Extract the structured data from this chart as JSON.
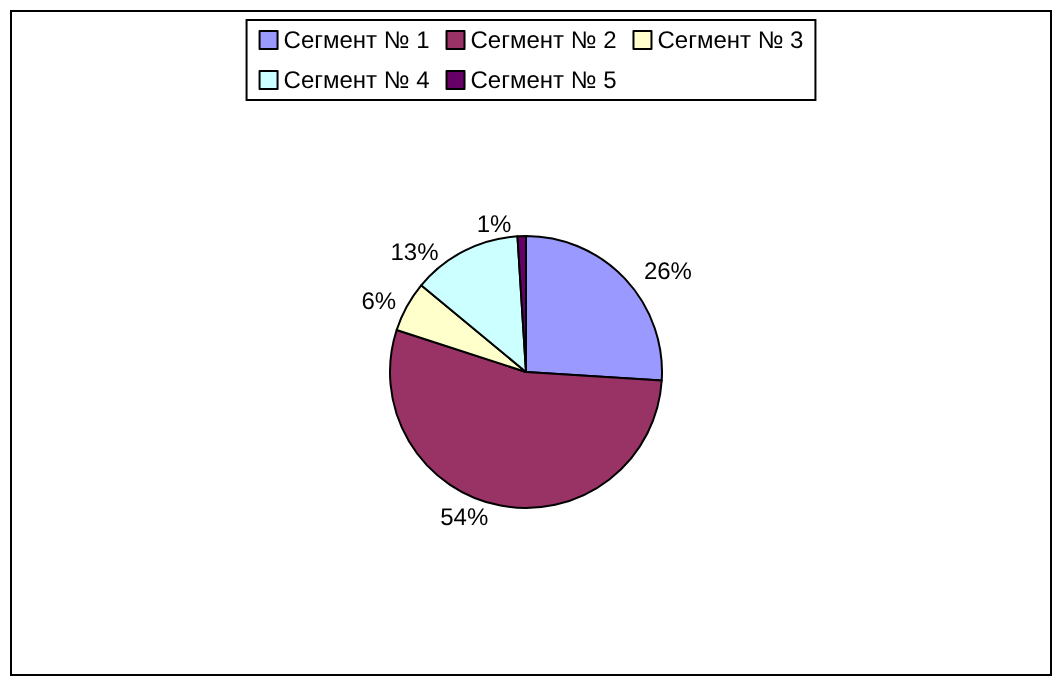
{
  "chart_data": {
    "type": "pie",
    "categories": [
      "Сегмент № 1",
      "Сегмент № 2",
      "Сегмент № 3",
      "Сегмент № 4",
      "Сегмент № 5"
    ],
    "values": [
      26,
      54,
      6,
      13,
      1
    ],
    "value_labels": [
      "26%",
      "54%",
      "6%",
      "13%",
      "1%"
    ],
    "colors": [
      "#9999ff",
      "#993366",
      "#ffffcc",
      "#ccffff",
      "#660066"
    ],
    "legend": "top"
  }
}
